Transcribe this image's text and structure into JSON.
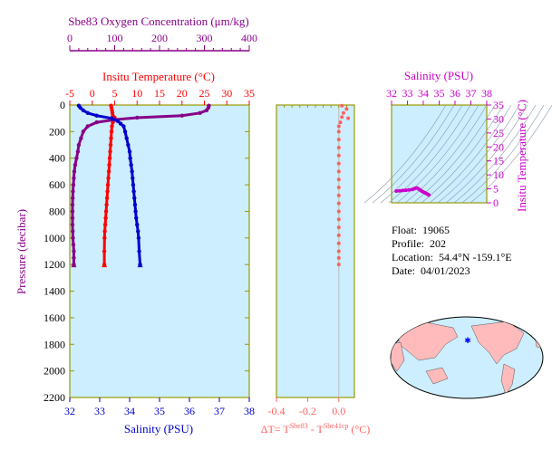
{
  "chart_data": [
    {
      "type": "line",
      "name": "main-profile",
      "ylabel": "Pressure (decibar)",
      "ylim": [
        2200,
        0
      ],
      "yticks": [
        0,
        200,
        400,
        600,
        800,
        1000,
        1200,
        1400,
        1600,
        1800,
        2000,
        2200
      ],
      "axes": {
        "temperature": {
          "label": "Insitu Temperature (°C)",
          "range": [
            -5,
            35
          ],
          "ticks": [
            -5,
            0,
            5,
            10,
            15,
            20,
            25,
            30,
            35
          ],
          "color": "#ff0000"
        },
        "oxygen": {
          "label": "Sbe83 Oxygen Concentration (μm/kg)",
          "range": [
            0,
            400
          ],
          "ticks": [
            0,
            100,
            200,
            300,
            400
          ],
          "color": "#880088"
        },
        "salinity": {
          "label": "Salinity (PSU)",
          "range": [
            32,
            38
          ],
          "ticks": [
            32,
            33,
            34,
            35,
            36,
            37,
            38
          ],
          "color": "#0000cc"
        }
      },
      "series": [
        {
          "name": "",
          "axis": "temperature",
          "color": "#ff0000",
          "points": [
            [
              4.2,
              5
            ],
            [
              4.3,
              20
            ],
            [
              4.4,
              40
            ],
            [
              4.5,
              60
            ],
            [
              4.6,
              80
            ],
            [
              5.0,
              95
            ],
            [
              4.8,
              110
            ],
            [
              4.6,
              130
            ],
            [
              4.4,
              160
            ],
            [
              4.3,
              200
            ],
            [
              4.2,
              250
            ],
            [
              4.1,
              300
            ],
            [
              4.0,
              350
            ],
            [
              3.9,
              400
            ],
            [
              3.8,
              450
            ],
            [
              3.7,
              500
            ],
            [
              3.6,
              550
            ],
            [
              3.5,
              600
            ],
            [
              3.4,
              650
            ],
            [
              3.3,
              700
            ],
            [
              3.2,
              750
            ],
            [
              3.1,
              800
            ],
            [
              3.0,
              850
            ],
            [
              2.9,
              900
            ],
            [
              2.8,
              950
            ],
            [
              2.75,
              1000
            ],
            [
              2.7,
              1100
            ],
            [
              2.7,
              1200
            ]
          ]
        },
        {
          "name": "",
          "axis": "oxygen",
          "color": "#880088",
          "points": [
            [
              310,
              5
            ],
            [
              309,
              20
            ],
            [
              305,
              40
            ],
            [
              290,
              60
            ],
            [
              250,
              80
            ],
            [
              150,
              95
            ],
            [
              100,
              110
            ],
            [
              60,
              130
            ],
            [
              40,
              160
            ],
            [
              30,
              200
            ],
            [
              25,
              250
            ],
            [
              20,
              300
            ],
            [
              18,
              350
            ],
            [
              15,
              400
            ],
            [
              12,
              450
            ],
            [
              10,
              500
            ],
            [
              9,
              550
            ],
            [
              8,
              600
            ],
            [
              7,
              650
            ],
            [
              6.5,
              700
            ],
            [
              6,
              750
            ],
            [
              6,
              800
            ],
            [
              6,
              850
            ],
            [
              6,
              900
            ],
            [
              6.5,
              950
            ],
            [
              7,
              1000
            ],
            [
              8,
              1050
            ],
            [
              9,
              1100
            ],
            [
              9,
              1150
            ],
            [
              9,
              1200
            ]
          ]
        },
        {
          "name": "",
          "axis": "salinity",
          "color": "#0000cc",
          "points": [
            [
              32.3,
              5
            ],
            [
              32.35,
              20
            ],
            [
              32.45,
              40
            ],
            [
              32.6,
              60
            ],
            [
              32.9,
              80
            ],
            [
              33.4,
              100
            ],
            [
              33.6,
              120
            ],
            [
              33.7,
              140
            ],
            [
              33.8,
              160
            ],
            [
              33.85,
              200
            ],
            [
              33.9,
              250
            ],
            [
              33.95,
              300
            ],
            [
              34.0,
              350
            ],
            [
              34.02,
              400
            ],
            [
              34.05,
              450
            ],
            [
              34.08,
              500
            ],
            [
              34.1,
              550
            ],
            [
              34.12,
              600
            ],
            [
              34.14,
              650
            ],
            [
              34.16,
              700
            ],
            [
              34.18,
              750
            ],
            [
              34.2,
              800
            ],
            [
              34.22,
              850
            ],
            [
              34.25,
              900
            ],
            [
              34.28,
              950
            ],
            [
              34.3,
              1000
            ],
            [
              34.32,
              1100
            ],
            [
              34.35,
              1200
            ]
          ]
        }
      ]
    },
    {
      "type": "scatter",
      "name": "delta-t",
      "xlabel_parts": {
        "prefix": "ΔT= T",
        "sup1": "Sbe83",
        "mid": " - T",
        "sup2": "Sbe41cp",
        "suffix": " (°C)"
      },
      "xlim": [
        -0.4,
        0.1
      ],
      "xticks": [
        -0.4,
        -0.2,
        0.0
      ],
      "tick_labels": [
        "-0.4",
        "-0.2",
        "0.0"
      ],
      "ylim": [
        2200,
        0
      ],
      "color": "#ff6060",
      "points": [
        [
          0.02,
          5
        ],
        [
          0.05,
          30
        ],
        [
          0.03,
          60
        ],
        [
          0.02,
          90
        ],
        [
          0.06,
          100
        ],
        [
          0.01,
          130
        ],
        [
          0.0,
          160
        ],
        [
          0.0,
          200
        ],
        [
          0.0,
          260
        ],
        [
          0.0,
          320
        ],
        [
          0.0,
          380
        ],
        [
          0.0,
          440
        ],
        [
          0.0,
          500
        ],
        [
          0.0,
          560
        ],
        [
          0.0,
          620
        ],
        [
          0.0,
          680
        ],
        [
          0.0,
          740
        ],
        [
          0.0,
          800
        ],
        [
          0.0,
          860
        ],
        [
          0.0,
          920
        ],
        [
          0.0,
          980
        ],
        [
          0.0,
          1040
        ],
        [
          0.0,
          1100
        ],
        [
          0.0,
          1150
        ],
        [
          0.0,
          1200
        ]
      ]
    },
    {
      "type": "scatter",
      "name": "ts-diagram",
      "xlabel": "Salinity (PSU)",
      "ylabel": "Insitu Temperature (°C)",
      "xlim": [
        32,
        38
      ],
      "xticks": [
        32,
        33,
        34,
        35,
        36,
        37,
        38
      ],
      "ylim": [
        0,
        35
      ],
      "yticks": [
        0,
        5,
        10,
        15,
        20,
        25,
        30,
        35
      ],
      "color": "#cc00cc",
      "points": [
        [
          32.3,
          4.2
        ],
        [
          32.5,
          4.3
        ],
        [
          32.7,
          4.4
        ],
        [
          32.9,
          4.5
        ],
        [
          33.1,
          4.6
        ],
        [
          33.3,
          4.8
        ],
        [
          33.4,
          5.0
        ],
        [
          33.5,
          5.2
        ],
        [
          33.6,
          5.3
        ],
        [
          33.7,
          5.0
        ],
        [
          33.8,
          4.6
        ],
        [
          33.9,
          4.2
        ],
        [
          34.0,
          3.9
        ],
        [
          34.1,
          3.6
        ],
        [
          34.2,
          3.3
        ],
        [
          34.3,
          3.0
        ],
        [
          34.35,
          2.8
        ]
      ]
    }
  ],
  "info": {
    "float_label": "Float:",
    "float": "19065",
    "profile_label": "Profile:",
    "profile": "202",
    "location_label": "Location:",
    "location": "54.4°N  -159.1°E",
    "date_label": "Date:",
    "date": "04/01/2023"
  },
  "colors": {
    "panel": "#cceeff",
    "frame": "#999900"
  }
}
